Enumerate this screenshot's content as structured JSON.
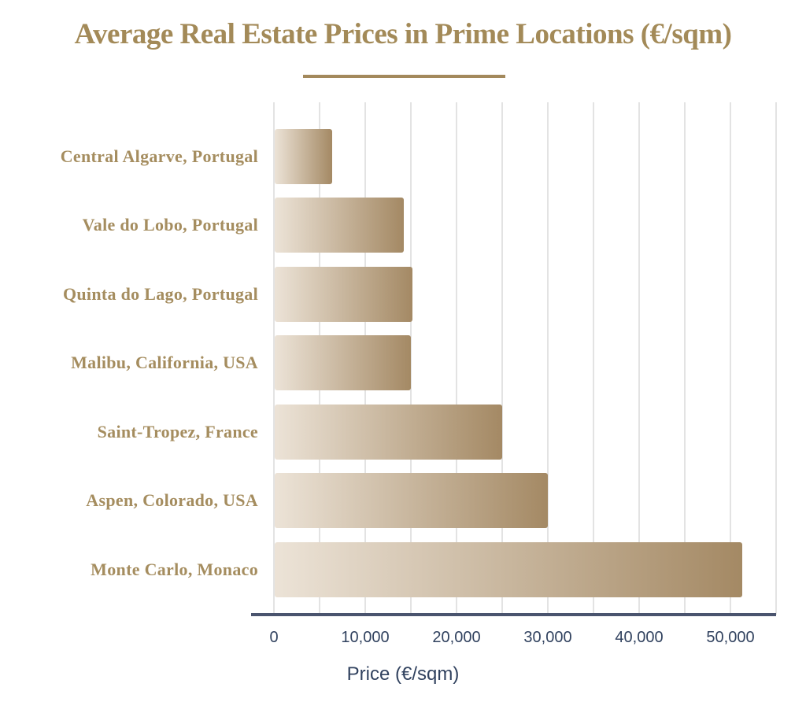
{
  "page": {
    "background": "#ffffff"
  },
  "chart_data": {
    "type": "bar",
    "orientation": "horizontal",
    "title": "Average Real Estate Prices in Prime Locations (€/sqm)",
    "xlabel": "Price (€/sqm)",
    "categories": [
      "Central Algarve, Portugal",
      "Vale do Lobo, Portugal",
      "Quinta do Lago, Portugal",
      "Malibu, California, USA",
      "Saint-Tropez, France",
      "Aspen, Colorado, USA",
      "Monte Carlo, Monaco"
    ],
    "values": [
      6400,
      14200,
      15200,
      15000,
      25000,
      30000,
      51250
    ],
    "xlim": [
      0,
      55000
    ],
    "x_ticks": [
      0,
      10000,
      20000,
      30000,
      40000,
      50000
    ],
    "x_tick_labels": [
      "0",
      "10,000",
      "20,000",
      "30,000",
      "40,000",
      "50,000"
    ],
    "gridline_step": 5000,
    "grid": "vertical-only",
    "legend": "none",
    "colors": {
      "title_gold": "#a38a58",
      "rule_gold": "#a3895c",
      "label_gold": "#a58d5f",
      "tick_navy": "#31425f",
      "axis_line": "#4a546e",
      "gridline": "#e3e3e3",
      "bar_gradient_start": "#ece3d7",
      "bar_gradient_end": "#a48964"
    }
  }
}
